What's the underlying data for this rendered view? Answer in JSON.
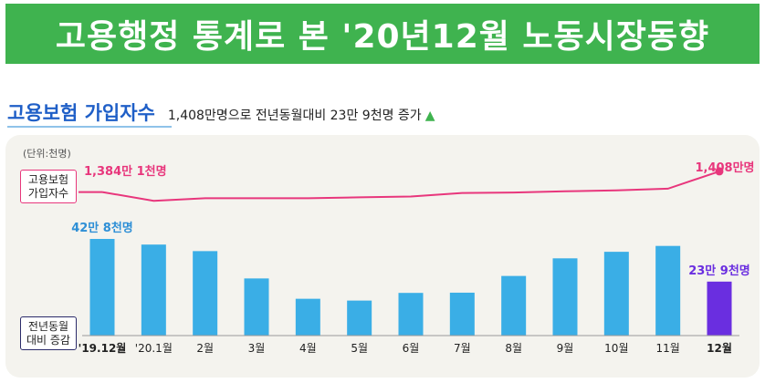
{
  "header": {
    "title": "고용행정 통계로 본 '20년12월 노동시장동향"
  },
  "section": {
    "title": "고용보험 가입자수",
    "description": "1,408만명으로 전년동월대비 23만 9천명 증가"
  },
  "chart_data": {
    "unit_label": "(단위:천명)",
    "categories": [
      "'19.12월",
      "'20.1월",
      "2월",
      "3월",
      "4월",
      "5월",
      "6월",
      "7월",
      "8월",
      "9월",
      "10월",
      "11월",
      "12월"
    ],
    "series": [
      {
        "name": "고용보험 가입자수",
        "label_lines": [
          "고용보험",
          "가입자수"
        ],
        "type": "line",
        "color": "#e8367c",
        "values": [
          13841,
          13740,
          13770,
          13770,
          13770,
          13780,
          13790,
          13830,
          13835,
          13850,
          13860,
          13880,
          14080
        ],
        "labels": [
          {
            "index": 0,
            "text": "1,384만 1천명"
          },
          {
            "index": 12,
            "text": "1,408만명"
          }
        ]
      },
      {
        "name": "전년동월 대비 증감",
        "label_lines": [
          "전년동월",
          "대비 증감"
        ],
        "type": "bar",
        "color": "#3aaee6",
        "highlight_color": "#6a2ee0",
        "values": [
          428,
          403,
          374,
          253,
          163,
          155,
          189,
          190,
          264,
          342,
          371,
          397,
          239
        ],
        "labels": [
          {
            "index": 0,
            "text": "42만 8천명"
          },
          {
            "index": 12,
            "text": "23만 9천명"
          }
        ]
      }
    ]
  }
}
